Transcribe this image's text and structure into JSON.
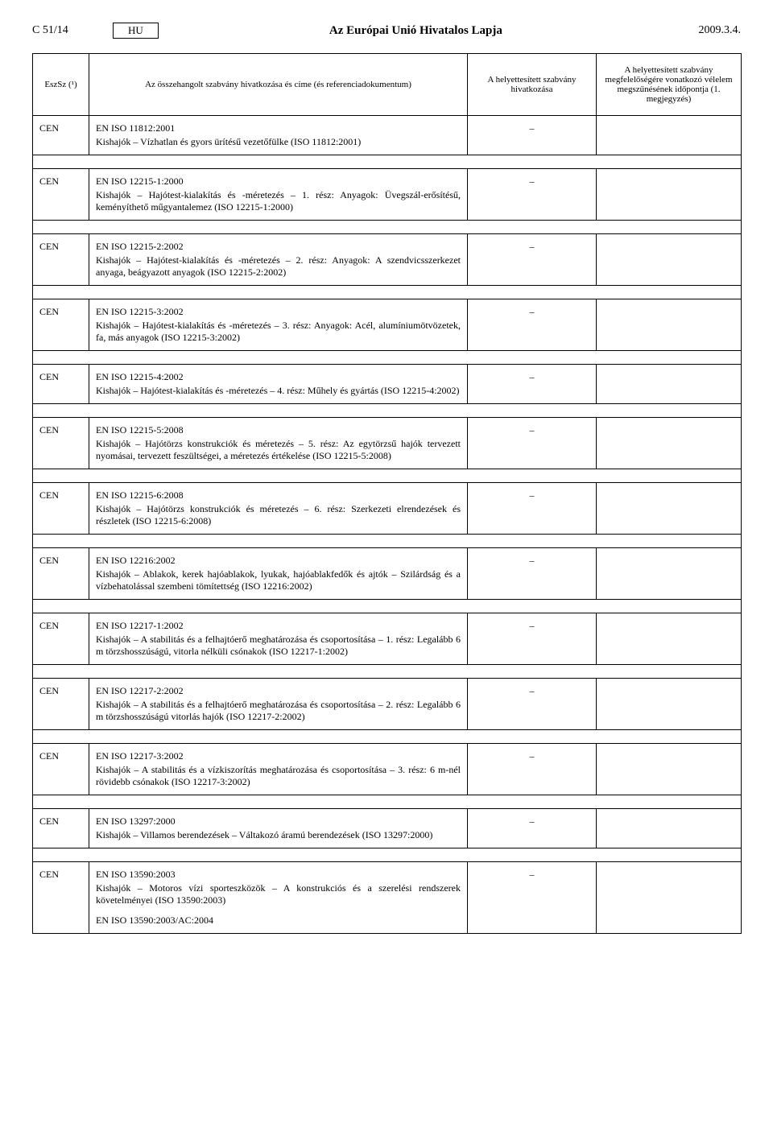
{
  "header": {
    "page_number": "C 51/14",
    "lang": "HU",
    "journal_title": "Az Európai Unió Hivatalos Lapja",
    "date": "2009.3.4."
  },
  "columns": {
    "c1": "EszSz (¹)",
    "c2": "Az összehangolt szabvány hivatkozása és címe\n(és referenciadokumentum)",
    "c3": "A helyettesített szabvány hivatkozása",
    "c4": "A helyettesített szabvány megfelelőségére vonatkozó vélelem megszűnésének időpontja\n(1. megjegyzés)"
  },
  "rows": [
    {
      "org": "CEN",
      "code": "EN ISO 11812:2001",
      "desc": "Kishajók – Vízhatlan és gyors ürítésű vezetőfülke (ISO 11812:2001)",
      "col3": "–",
      "col4": ""
    },
    {
      "org": "CEN",
      "code": "EN ISO 12215-1:2000",
      "desc": "Kishajók – Hajótest-kialakítás és -méretezés – 1. rész: Anyagok: Üvegszál-erősítésű, keményíthető műgyantalemez (ISO 12215-1:2000)",
      "col3": "–",
      "col4": ""
    },
    {
      "org": "CEN",
      "code": "EN ISO 12215-2:2002",
      "desc": "Kishajók – Hajótest-kialakítás és -méretezés – 2. rész: Anyagok: A szendvicsszerkezet anyaga, beágyazott anyagok (ISO 12215-2:2002)",
      "col3": "–",
      "col4": ""
    },
    {
      "org": "CEN",
      "code": "EN ISO 12215-3:2002",
      "desc": "Kishajók – Hajótest-kialakítás és -méretezés – 3. rész: Anyagok: Acél, alumíniumötvözetek, fa, más anyagok (ISO 12215-3:2002)",
      "col3": "–",
      "col4": ""
    },
    {
      "org": "CEN",
      "code": "EN ISO 12215-4:2002",
      "desc": "Kishajók – Hajótest-kialakítás és -méretezés – 4. rész: Műhely és gyártás (ISO 12215-4:2002)",
      "col3": "–",
      "col4": ""
    },
    {
      "org": "CEN",
      "code": "EN ISO 12215-5:2008",
      "desc": "Kishajók – Hajótörzs konstrukciók és méretezés – 5. rész: Az egytörzsű hajók tervezett nyomásai, tervezett feszültségei, a méretezés értékelése (ISO 12215-5:2008)",
      "col3": "–",
      "col4": ""
    },
    {
      "org": "CEN",
      "code": "EN ISO 12215-6:2008",
      "desc": "Kishajók – Hajótörzs konstrukciók és méretezés – 6. rész: Szerkezeti elrendezések és részletek (ISO 12215-6:2008)",
      "col3": "–",
      "col4": ""
    },
    {
      "org": "CEN",
      "code": "EN ISO 12216:2002",
      "desc": "Kishajók – Ablakok, kerek hajóablakok, lyukak, hajóablakfedők és ajtók – Szilárdság és a vízbehatolással szembeni tömítettség (ISO 12216:2002)",
      "col3": "–",
      "col4": ""
    },
    {
      "org": "CEN",
      "code": "EN ISO 12217-1:2002",
      "desc": "Kishajók – A stabilitás és a felhajtóerő meghatározása és csoportosítása – 1. rész: Legalább 6 m törzshosszúságú, vitorla nélküli csónakok (ISO 12217-1:2002)",
      "col3": "–",
      "col4": ""
    },
    {
      "org": "CEN",
      "code": "EN ISO 12217-2:2002",
      "desc": "Kishajók – A stabilitás és a felhajtóerő meghatározása és csoportosítása – 2. rész: Legalább 6 m törzshosszúságú vitorlás hajók (ISO 12217-2:2002)",
      "col3": "–",
      "col4": ""
    },
    {
      "org": "CEN",
      "code": "EN ISO 12217-3:2002",
      "desc": "Kishajók – A stabilitás és a vízkiszorítás meghatározása és csoportosítása – 3. rész: 6 m-nél rövidebb csónakok (ISO 12217-3:2002)",
      "col3": "–",
      "col4": ""
    },
    {
      "org": "CEN",
      "code": "EN ISO 13297:2000",
      "desc": "Kishajók – Villamos berendezések – Váltakozó áramú berendezések (ISO 13297:2000)",
      "col3": "–",
      "col4": ""
    },
    {
      "org": "CEN",
      "code": "EN ISO 13590:2003",
      "desc": "Kishajók – Motoros vízi sporteszközök – A konstrukciós és a szerelési rendszerek követelményei (ISO 13590:2003)",
      "col3": "–",
      "col4": "",
      "extra": "EN ISO 13590:2003/AC:2004"
    }
  ]
}
